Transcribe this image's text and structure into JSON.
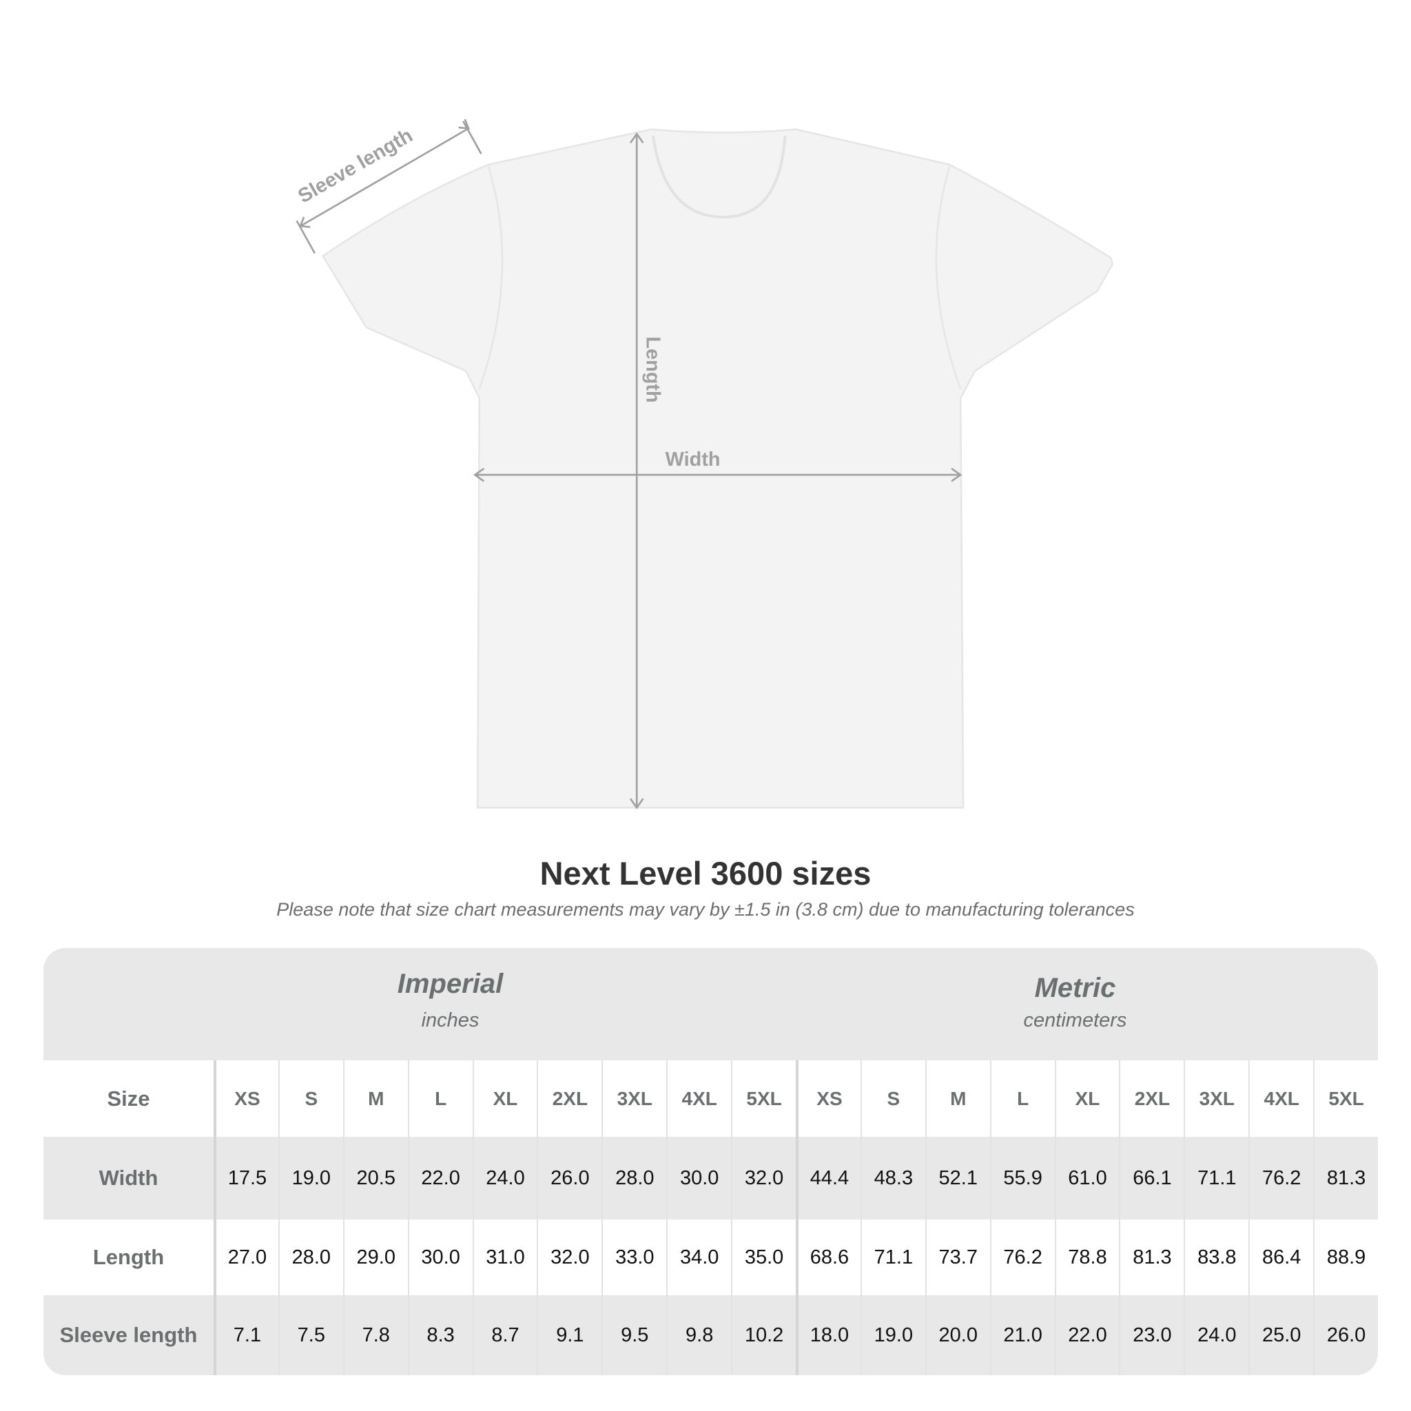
{
  "diagram": {
    "labels": {
      "sleeve": "Sleeve length",
      "length": "Length",
      "width": "Width"
    },
    "colors": {
      "shirt": "#f3f3f3",
      "measure": "#a0a0a0"
    }
  },
  "title": "Next Level 3600 sizes",
  "note": "Please note that size chart measurements may vary by ±1.5 in (3.8 cm) due to manufacturing tolerances",
  "table": {
    "imperial": {
      "name": "Imperial",
      "unit": "inches"
    },
    "metric": {
      "name": "Metric",
      "unit": "centimeters"
    },
    "size_label": "Size",
    "sizes": [
      "XS",
      "S",
      "M",
      "L",
      "XL",
      "2XL",
      "3XL",
      "4XL",
      "5XL"
    ],
    "rows": [
      {
        "label": "Width",
        "imperial": [
          "17.5",
          "19.0",
          "20.5",
          "22.0",
          "24.0",
          "26.0",
          "28.0",
          "30.0",
          "32.0"
        ],
        "metric": [
          "44.4",
          "48.3",
          "52.1",
          "55.9",
          "61.0",
          "66.1",
          "71.1",
          "76.2",
          "81.3"
        ]
      },
      {
        "label": "Length",
        "imperial": [
          "27.0",
          "28.0",
          "29.0",
          "30.0",
          "31.0",
          "32.0",
          "33.0",
          "34.0",
          "35.0"
        ],
        "metric": [
          "68.6",
          "71.1",
          "73.7",
          "76.2",
          "78.8",
          "81.3",
          "83.8",
          "86.4",
          "88.9"
        ]
      },
      {
        "label": "Sleeve length",
        "imperial": [
          "7.1",
          "7.5",
          "7.8",
          "8.3",
          "8.7",
          "9.1",
          "9.5",
          "9.8",
          "10.2"
        ],
        "metric": [
          "18.0",
          "19.0",
          "20.0",
          "21.0",
          "22.0",
          "23.0",
          "24.0",
          "25.0",
          "26.0"
        ]
      }
    ]
  }
}
